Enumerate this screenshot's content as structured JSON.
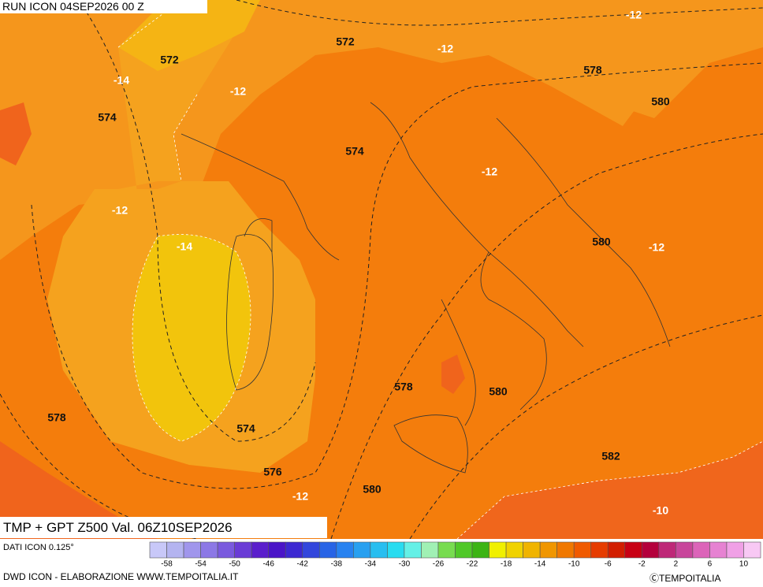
{
  "header": {
    "run": "RUN ICON 04SEP2026 00 Z"
  },
  "title": "TMP + GPT Z500 Val. 06Z10SEP2026",
  "source": "DATI ICON 0.125°",
  "footer": {
    "credit": "DWD ICON - ELABORAZIONE WWW.TEMPOITALIA.IT",
    "copyright": "ⒸTEMPOITALIA"
  },
  "map": {
    "geopotential_labels": [
      572,
      572,
      578,
      580,
      574,
      574,
      580,
      578,
      580,
      578,
      574,
      582,
      576,
      580
    ],
    "temperature_labels": [
      -12,
      -12,
      -14,
      -12,
      -12,
      -12,
      -14,
      -12,
      -12,
      -10
    ]
  },
  "scale": {
    "ticks": [
      -58,
      -54,
      -50,
      -46,
      -42,
      -38,
      -34,
      -30,
      -26,
      -22,
      -18,
      -14,
      -10,
      -6,
      -2,
      2,
      6,
      10
    ],
    "colors": [
      "#c8c8f8",
      "#b4b4f0",
      "#a096ec",
      "#8c78e6",
      "#7a5ade",
      "#6a3cd6",
      "#5a1ecc",
      "#4a14c8",
      "#3c28d2",
      "#3246dc",
      "#2864e6",
      "#2882f0",
      "#28a0f0",
      "#28bef0",
      "#28dcf0",
      "#64f0e6",
      "#a0f0b4",
      "#78dc50",
      "#50c828",
      "#3cb414",
      "#f0f000",
      "#f0d200",
      "#f0b400",
      "#f09600",
      "#f07800",
      "#f05a00",
      "#e63c00",
      "#d21e00",
      "#c80014",
      "#b4003c",
      "#be2878",
      "#c8469b",
      "#dc64b9",
      "#e682d2",
      "#f0a0e6",
      "#f8c8f4"
    ]
  }
}
